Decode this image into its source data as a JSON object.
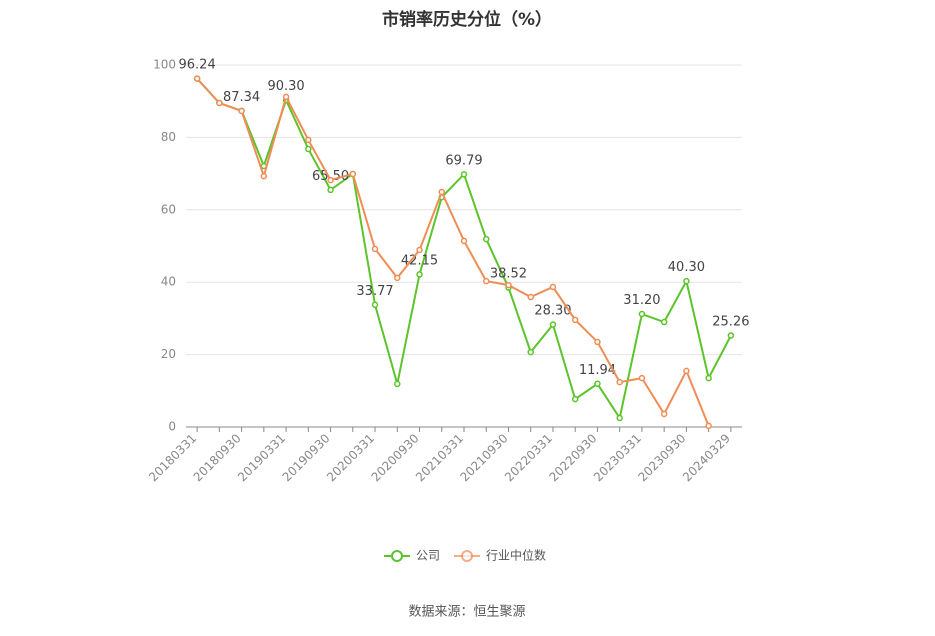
{
  "chart_data": {
    "type": "line",
    "title": "市销率历史分位（%）",
    "categories": [
      "20180331",
      null,
      "20180930",
      null,
      "20190331",
      null,
      "20190930",
      null,
      "20200331",
      null,
      "20200930",
      null,
      "20210331",
      null,
      "20210930",
      null,
      "20220331",
      null,
      "20220930",
      null,
      "20230331",
      null,
      "20230930",
      null,
      "20240329"
    ],
    "series": [
      {
        "name": "公司",
        "color": "#5cc42b",
        "values": [
          96.24,
          89.5,
          87.34,
          72.1,
          90.3,
          76.8,
          65.5,
          69.9,
          33.77,
          11.9,
          42.15,
          63.5,
          69.79,
          51.9,
          38.52,
          20.7,
          28.3,
          7.7,
          11.94,
          2.5,
          31.2,
          29.0,
          40.3,
          13.5,
          25.26
        ],
        "value_labels": [
          "96.24",
          null,
          "87.34",
          null,
          "90.30",
          null,
          "65.50",
          null,
          "33.77",
          null,
          "42.15",
          null,
          "69.79",
          null,
          "38.52",
          null,
          "28.30",
          null,
          "11.94",
          null,
          "31.20",
          null,
          "40.30",
          null,
          "25.26"
        ]
      },
      {
        "name": "行业中位数",
        "color": "#f08c55",
        "values": [
          96.24,
          89.5,
          87.3,
          69.3,
          91.2,
          79.3,
          68.2,
          69.9,
          49.2,
          41.2,
          48.9,
          64.9,
          51.4,
          40.3,
          39.2,
          35.9,
          38.7,
          29.6,
          23.5,
          12.4,
          13.5,
          3.6,
          15.5,
          0.3,
          null
        ]
      }
    ],
    "ylim": [
      0,
      100
    ],
    "yticks": [
      0,
      20,
      40,
      60,
      80,
      100
    ],
    "grid": true,
    "legend": "bottom",
    "source": "数据来源：恒生聚源"
  }
}
